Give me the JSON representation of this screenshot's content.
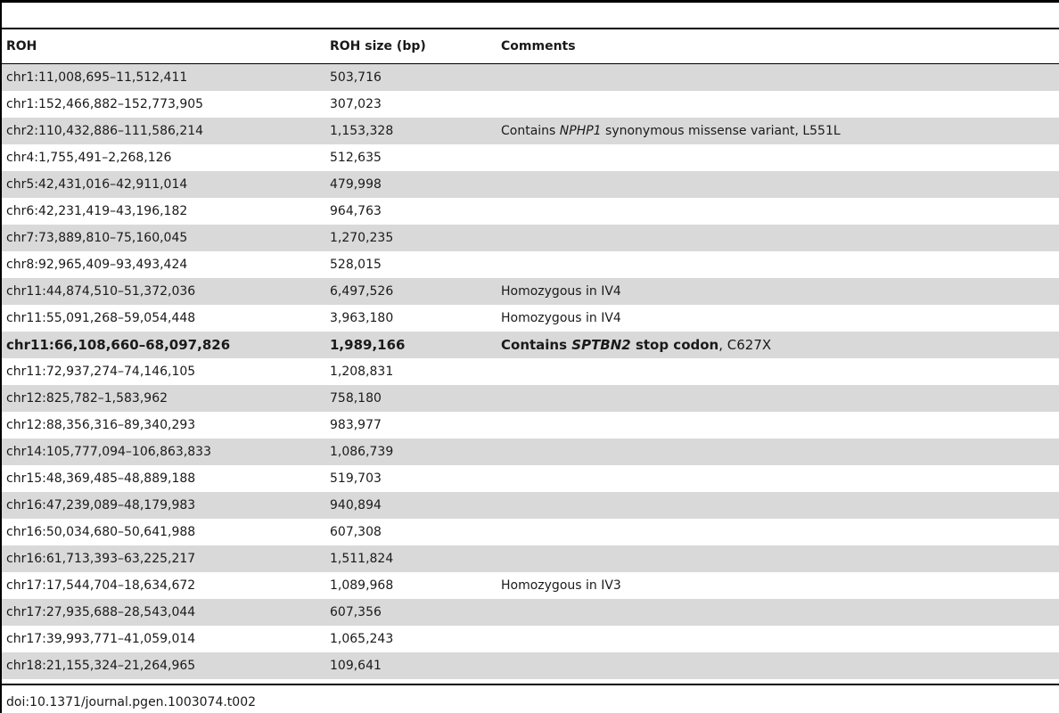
{
  "table": {
    "headers": [
      "ROH",
      "ROH size (bp)",
      "Comments"
    ],
    "rows": [
      {
        "roh": "chr1:11,008,695–11,512,411",
        "size": "503,716",
        "comments": [],
        "bold": false
      },
      {
        "roh": "chr1:152,466,882–152,773,905",
        "size": "307,023",
        "comments": [],
        "bold": false
      },
      {
        "roh": "chr2:110,432,886–111,586,214",
        "size": "1,153,328",
        "comments": [
          {
            "text": "Contains ",
            "italic": false,
            "bold": false
          },
          {
            "text": "NPHP1",
            "italic": true,
            "bold": false
          },
          {
            "text": " synonymous missense variant, L551L",
            "italic": false,
            "bold": false
          }
        ],
        "bold": false
      },
      {
        "roh": "chr4:1,755,491–2,268,126",
        "size": "512,635",
        "comments": [],
        "bold": false
      },
      {
        "roh": "chr5:42,431,016–42,911,014",
        "size": "479,998",
        "comments": [],
        "bold": false
      },
      {
        "roh": "chr6:42,231,419–43,196,182",
        "size": "964,763",
        "comments": [],
        "bold": false
      },
      {
        "roh": "chr7:73,889,810–75,160,045",
        "size": "1,270,235",
        "comments": [],
        "bold": false
      },
      {
        "roh": "chr8:92,965,409–93,493,424",
        "size": "528,015",
        "comments": [],
        "bold": false
      },
      {
        "roh": "chr11:44,874,510–51,372,036",
        "size": "6,497,526",
        "comments": [
          {
            "text": "Homozygous in IV4",
            "italic": false,
            "bold": false
          }
        ],
        "bold": false
      },
      {
        "roh": "chr11:55,091,268–59,054,448",
        "size": "3,963,180",
        "comments": [
          {
            "text": "Homozygous in IV4",
            "italic": false,
            "bold": false
          }
        ],
        "bold": false
      },
      {
        "roh": "chr11:66,108,660–68,097,826",
        "size": "1,989,166",
        "comments": [
          {
            "text": "Contains ",
            "italic": false,
            "bold": true
          },
          {
            "text": "SPTBN2",
            "italic": true,
            "bold": true
          },
          {
            "text": " stop codon",
            "italic": false,
            "bold": true
          },
          {
            "text": ", C627X",
            "italic": false,
            "bold": false
          }
        ],
        "bold": true
      },
      {
        "roh": "chr11:72,937,274–74,146,105",
        "size": "1,208,831",
        "comments": [],
        "bold": false
      },
      {
        "roh": "chr12:825,782–1,583,962",
        "size": "758,180",
        "comments": [],
        "bold": false
      },
      {
        "roh": "chr12:88,356,316–89,340,293",
        "size": "983,977",
        "comments": [],
        "bold": false
      },
      {
        "roh": "chr14:105,777,094–106,863,833",
        "size": "1,086,739",
        "comments": [],
        "bold": false
      },
      {
        "roh": "chr15:48,369,485–48,889,188",
        "size": "519,703",
        "comments": [],
        "bold": false
      },
      {
        "roh": "chr16:47,239,089–48,179,983",
        "size": "940,894",
        "comments": [],
        "bold": false
      },
      {
        "roh": "chr16:50,034,680–50,641,988",
        "size": "607,308",
        "comments": [],
        "bold": false
      },
      {
        "roh": "chr16:61,713,393–63,225,217",
        "size": "1,511,824",
        "comments": [],
        "bold": false
      },
      {
        "roh": "chr17:17,544,704–18,634,672",
        "size": "1,089,968",
        "comments": [
          {
            "text": "Homozygous in IV3",
            "italic": false,
            "bold": false
          }
        ],
        "bold": false
      },
      {
        "roh": "chr17:27,935,688–28,543,044",
        "size": "607,356",
        "comments": [],
        "bold": false
      },
      {
        "roh": "chr17:39,993,771–41,059,014",
        "size": "1,065,243",
        "comments": [],
        "bold": false
      },
      {
        "roh": "chr18:21,155,324–21,264,965",
        "size": "109,641",
        "comments": [],
        "bold": false
      }
    ]
  },
  "footer": {
    "doi": "doi:10.1371/journal.pgen.1003074.t002"
  },
  "colors": {
    "row_shade": "#d9d9d9",
    "rule": "#000000"
  }
}
